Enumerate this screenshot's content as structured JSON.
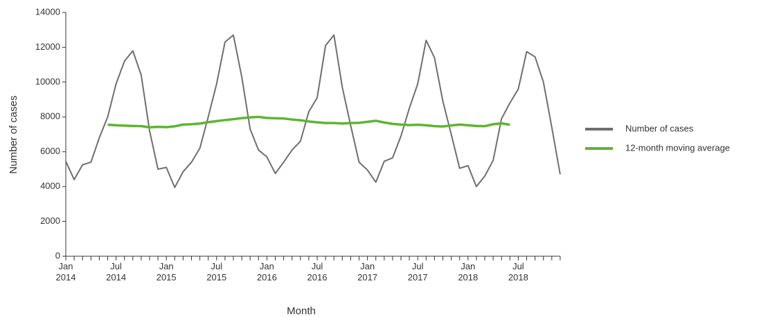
{
  "chart_data": {
    "type": "line",
    "x_label": "Month",
    "y_label": "Number of cases",
    "categories": [
      "Jan\n2014",
      null,
      null,
      null,
      null,
      null,
      "Jul\n2014",
      null,
      null,
      null,
      null,
      null,
      "Jan\n2015",
      null,
      null,
      null,
      null,
      null,
      "Jul\n2015",
      null,
      null,
      null,
      null,
      null,
      "Jan\n2016",
      null,
      null,
      null,
      null,
      null,
      "Jul\n2016",
      null,
      null,
      null,
      null,
      null,
      "Jan\n2017",
      null,
      null,
      null,
      null,
      null,
      "Jul\n2017",
      null,
      null,
      null,
      null,
      null,
      "Jan\n2018",
      null,
      null,
      null,
      null,
      null,
      "Jul\n2018",
      null,
      null,
      null,
      null,
      null
    ],
    "series": [
      {
        "name": "Number of cases",
        "color": "#6e6e6e",
        "values": [
          5450,
          4400,
          5250,
          5400,
          6800,
          8000,
          9900,
          11200,
          11800,
          10400,
          7200,
          5000,
          5100,
          3950,
          4850,
          5400,
          6200,
          8000,
          9900,
          12300,
          12700,
          10300,
          7300,
          6100,
          5700,
          4750,
          5400,
          6100,
          6600,
          8300,
          9100,
          12100,
          12700,
          9700,
          7500,
          5400,
          4950,
          4250,
          5450,
          5650,
          6900,
          8500,
          9900,
          12400,
          11400,
          8900,
          7000,
          5050,
          5200,
          4000,
          4600,
          5500,
          7900,
          8800,
          9600,
          11750,
          11450,
          10000,
          7400,
          4700
        ]
      },
      {
        "name": "12-month moving average",
        "color": "#5db52f",
        "values": [
          null,
          null,
          null,
          null,
          null,
          7550,
          7520,
          7500,
          7480,
          7470,
          7400,
          7430,
          7410,
          7460,
          7560,
          7580,
          7620,
          7700,
          7760,
          7820,
          7870,
          7930,
          7970,
          8000,
          7940,
          7920,
          7910,
          7850,
          7810,
          7740,
          7690,
          7650,
          7650,
          7620,
          7650,
          7660,
          7720,
          7780,
          7680,
          7600,
          7560,
          7530,
          7550,
          7520,
          7470,
          7450,
          7510,
          7560,
          7520,
          7480,
          7470,
          7580,
          7630,
          7550,
          null,
          null,
          null,
          null,
          null,
          null
        ]
      }
    ],
    "ylim": [
      0,
      14000
    ],
    "yticks": [
      0,
      2000,
      4000,
      6000,
      8000,
      10000,
      12000,
      14000
    ],
    "legend": "right"
  }
}
